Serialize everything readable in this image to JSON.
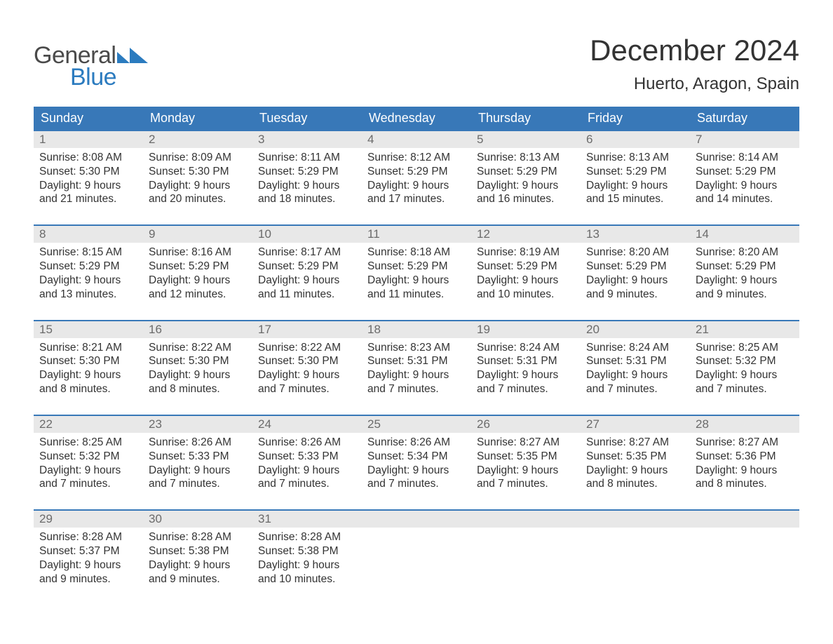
{
  "logo": {
    "text1": "General",
    "text2": "Blue",
    "text1_color": "#4a4a4a",
    "text2_color": "#2b7bbf",
    "mark_color": "#2b7bbf"
  },
  "title": "December 2024",
  "location": "Huerto, Aragon, Spain",
  "colors": {
    "header_bg": "#3878b8",
    "header_text": "#ffffff",
    "daynum_bg": "#e8e8e8",
    "daynum_text": "#6b6b6b",
    "body_text": "#333333",
    "week_border": "#3878b8",
    "page_bg": "#ffffff"
  },
  "fonts": {
    "title_size_pt": 32,
    "location_size_pt": 18,
    "weekday_size_pt": 14,
    "daynum_size_pt": 13,
    "cell_size_pt": 12
  },
  "weekdays": [
    "Sunday",
    "Monday",
    "Tuesday",
    "Wednesday",
    "Thursday",
    "Friday",
    "Saturday"
  ],
  "weeks": [
    {
      "days": [
        {
          "num": "1",
          "sunrise": "Sunrise: 8:08 AM",
          "sunset": "Sunset: 5:30 PM",
          "daylight1": "Daylight: 9 hours",
          "daylight2": "and 21 minutes."
        },
        {
          "num": "2",
          "sunrise": "Sunrise: 8:09 AM",
          "sunset": "Sunset: 5:30 PM",
          "daylight1": "Daylight: 9 hours",
          "daylight2": "and 20 minutes."
        },
        {
          "num": "3",
          "sunrise": "Sunrise: 8:11 AM",
          "sunset": "Sunset: 5:29 PM",
          "daylight1": "Daylight: 9 hours",
          "daylight2": "and 18 minutes."
        },
        {
          "num": "4",
          "sunrise": "Sunrise: 8:12 AM",
          "sunset": "Sunset: 5:29 PM",
          "daylight1": "Daylight: 9 hours",
          "daylight2": "and 17 minutes."
        },
        {
          "num": "5",
          "sunrise": "Sunrise: 8:13 AM",
          "sunset": "Sunset: 5:29 PM",
          "daylight1": "Daylight: 9 hours",
          "daylight2": "and 16 minutes."
        },
        {
          "num": "6",
          "sunrise": "Sunrise: 8:13 AM",
          "sunset": "Sunset: 5:29 PM",
          "daylight1": "Daylight: 9 hours",
          "daylight2": "and 15 minutes."
        },
        {
          "num": "7",
          "sunrise": "Sunrise: 8:14 AM",
          "sunset": "Sunset: 5:29 PM",
          "daylight1": "Daylight: 9 hours",
          "daylight2": "and 14 minutes."
        }
      ]
    },
    {
      "days": [
        {
          "num": "8",
          "sunrise": "Sunrise: 8:15 AM",
          "sunset": "Sunset: 5:29 PM",
          "daylight1": "Daylight: 9 hours",
          "daylight2": "and 13 minutes."
        },
        {
          "num": "9",
          "sunrise": "Sunrise: 8:16 AM",
          "sunset": "Sunset: 5:29 PM",
          "daylight1": "Daylight: 9 hours",
          "daylight2": "and 12 minutes."
        },
        {
          "num": "10",
          "sunrise": "Sunrise: 8:17 AM",
          "sunset": "Sunset: 5:29 PM",
          "daylight1": "Daylight: 9 hours",
          "daylight2": "and 11 minutes."
        },
        {
          "num": "11",
          "sunrise": "Sunrise: 8:18 AM",
          "sunset": "Sunset: 5:29 PM",
          "daylight1": "Daylight: 9 hours",
          "daylight2": "and 11 minutes."
        },
        {
          "num": "12",
          "sunrise": "Sunrise: 8:19 AM",
          "sunset": "Sunset: 5:29 PM",
          "daylight1": "Daylight: 9 hours",
          "daylight2": "and 10 minutes."
        },
        {
          "num": "13",
          "sunrise": "Sunrise: 8:20 AM",
          "sunset": "Sunset: 5:29 PM",
          "daylight1": "Daylight: 9 hours",
          "daylight2": "and 9 minutes."
        },
        {
          "num": "14",
          "sunrise": "Sunrise: 8:20 AM",
          "sunset": "Sunset: 5:29 PM",
          "daylight1": "Daylight: 9 hours",
          "daylight2": "and 9 minutes."
        }
      ]
    },
    {
      "days": [
        {
          "num": "15",
          "sunrise": "Sunrise: 8:21 AM",
          "sunset": "Sunset: 5:30 PM",
          "daylight1": "Daylight: 9 hours",
          "daylight2": "and 8 minutes."
        },
        {
          "num": "16",
          "sunrise": "Sunrise: 8:22 AM",
          "sunset": "Sunset: 5:30 PM",
          "daylight1": "Daylight: 9 hours",
          "daylight2": "and 8 minutes."
        },
        {
          "num": "17",
          "sunrise": "Sunrise: 8:22 AM",
          "sunset": "Sunset: 5:30 PM",
          "daylight1": "Daylight: 9 hours",
          "daylight2": "and 7 minutes."
        },
        {
          "num": "18",
          "sunrise": "Sunrise: 8:23 AM",
          "sunset": "Sunset: 5:31 PM",
          "daylight1": "Daylight: 9 hours",
          "daylight2": "and 7 minutes."
        },
        {
          "num": "19",
          "sunrise": "Sunrise: 8:24 AM",
          "sunset": "Sunset: 5:31 PM",
          "daylight1": "Daylight: 9 hours",
          "daylight2": "and 7 minutes."
        },
        {
          "num": "20",
          "sunrise": "Sunrise: 8:24 AM",
          "sunset": "Sunset: 5:31 PM",
          "daylight1": "Daylight: 9 hours",
          "daylight2": "and 7 minutes."
        },
        {
          "num": "21",
          "sunrise": "Sunrise: 8:25 AM",
          "sunset": "Sunset: 5:32 PM",
          "daylight1": "Daylight: 9 hours",
          "daylight2": "and 7 minutes."
        }
      ]
    },
    {
      "days": [
        {
          "num": "22",
          "sunrise": "Sunrise: 8:25 AM",
          "sunset": "Sunset: 5:32 PM",
          "daylight1": "Daylight: 9 hours",
          "daylight2": "and 7 minutes."
        },
        {
          "num": "23",
          "sunrise": "Sunrise: 8:26 AM",
          "sunset": "Sunset: 5:33 PM",
          "daylight1": "Daylight: 9 hours",
          "daylight2": "and 7 minutes."
        },
        {
          "num": "24",
          "sunrise": "Sunrise: 8:26 AM",
          "sunset": "Sunset: 5:33 PM",
          "daylight1": "Daylight: 9 hours",
          "daylight2": "and 7 minutes."
        },
        {
          "num": "25",
          "sunrise": "Sunrise: 8:26 AM",
          "sunset": "Sunset: 5:34 PM",
          "daylight1": "Daylight: 9 hours",
          "daylight2": "and 7 minutes."
        },
        {
          "num": "26",
          "sunrise": "Sunrise: 8:27 AM",
          "sunset": "Sunset: 5:35 PM",
          "daylight1": "Daylight: 9 hours",
          "daylight2": "and 7 minutes."
        },
        {
          "num": "27",
          "sunrise": "Sunrise: 8:27 AM",
          "sunset": "Sunset: 5:35 PM",
          "daylight1": "Daylight: 9 hours",
          "daylight2": "and 8 minutes."
        },
        {
          "num": "28",
          "sunrise": "Sunrise: 8:27 AM",
          "sunset": "Sunset: 5:36 PM",
          "daylight1": "Daylight: 9 hours",
          "daylight2": "and 8 minutes."
        }
      ]
    },
    {
      "days": [
        {
          "num": "29",
          "sunrise": "Sunrise: 8:28 AM",
          "sunset": "Sunset: 5:37 PM",
          "daylight1": "Daylight: 9 hours",
          "daylight2": "and 9 minutes."
        },
        {
          "num": "30",
          "sunrise": "Sunrise: 8:28 AM",
          "sunset": "Sunset: 5:38 PM",
          "daylight1": "Daylight: 9 hours",
          "daylight2": "and 9 minutes."
        },
        {
          "num": "31",
          "sunrise": "Sunrise: 8:28 AM",
          "sunset": "Sunset: 5:38 PM",
          "daylight1": "Daylight: 9 hours",
          "daylight2": "and 10 minutes."
        },
        {
          "empty": true
        },
        {
          "empty": true
        },
        {
          "empty": true
        },
        {
          "empty": true
        }
      ]
    }
  ]
}
